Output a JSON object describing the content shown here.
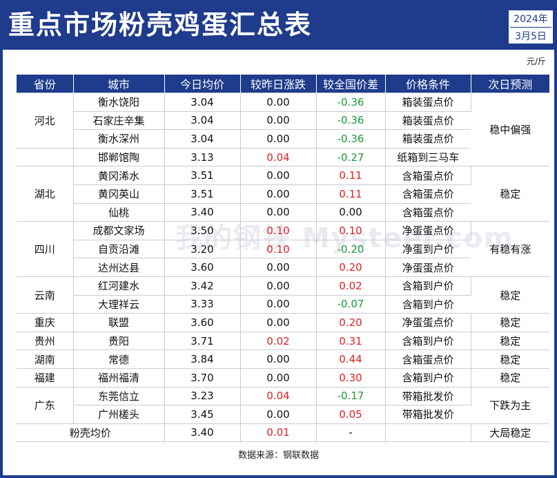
{
  "header": {
    "title": "重点市场粉壳鸡蛋汇总表",
    "year": "2024年",
    "date": "3月5日"
  },
  "unit": "元/斤",
  "watermark": "我的钢铁 Mysteel.com",
  "table": {
    "columns": [
      "省份",
      "城市",
      "今日均价",
      "较昨日涨跌",
      "较全国价差",
      "价格条件",
      "次日预测"
    ],
    "rows": [
      {
        "province": "河北",
        "rowspan": 3,
        "city": "衡水饶阳",
        "price": "3.04",
        "change": "0.00",
        "diff": "-0.36",
        "cond": "箱装蛋点价",
        "forecast": "稳中偏强",
        "frowspan": 4
      },
      {
        "city": "石家庄辛集",
        "price": "3.04",
        "change": "0.00",
        "diff": "-0.36",
        "cond": "箱装蛋点价"
      },
      {
        "city": "衡水深州",
        "price": "3.04",
        "change": "0.00",
        "diff": "-0.36",
        "cond": "箱装蛋点价"
      },
      {
        "province": "",
        "rowspan": 1,
        "city": "邯郸馆陶",
        "price": "3.13",
        "change": "0.04",
        "diff": "-0.27",
        "cond": "纸箱到三马车"
      },
      {
        "province": "湖北",
        "rowspan": 3,
        "city": "黄冈浠水",
        "price": "3.51",
        "change": "0.00",
        "diff": "0.11",
        "cond": "含箱蛋点价",
        "forecast": "稳定",
        "frowspan": 3
      },
      {
        "city": "黄冈英山",
        "price": "3.51",
        "change": "0.00",
        "diff": "0.11",
        "cond": "含箱蛋点价"
      },
      {
        "city": "仙桃",
        "price": "3.40",
        "change": "0.00",
        "diff": "0.00",
        "cond": "含箱蛋点价"
      },
      {
        "province": "四川",
        "rowspan": 3,
        "city": "成都文家场",
        "price": "3.50",
        "change": "0.10",
        "diff": "0.10",
        "cond": "净蛋蛋点价",
        "forecast": "有稳有涨",
        "frowspan": 3
      },
      {
        "city": "自贡沿滩",
        "price": "3.20",
        "change": "0.10",
        "diff": "-0.20",
        "cond": "净蛋到户价"
      },
      {
        "city": "达州达县",
        "price": "3.60",
        "change": "0.00",
        "diff": "0.20",
        "cond": "净蛋蛋点价"
      },
      {
        "province": "云南",
        "rowspan": 2,
        "city": "红河建水",
        "price": "3.42",
        "change": "0.00",
        "diff": "0.02",
        "cond": "含箱到户价",
        "forecast": "稳定",
        "frowspan": 2
      },
      {
        "city": "大理祥云",
        "price": "3.33",
        "change": "0.00",
        "diff": "-0.07",
        "cond": "含箱到户价"
      },
      {
        "province": "重庆",
        "rowspan": 1,
        "city": "联盟",
        "price": "3.60",
        "change": "0.00",
        "diff": "0.20",
        "cond": "净蛋蛋点价",
        "forecast": "稳定",
        "frowspan": 1
      },
      {
        "province": "贵州",
        "rowspan": 1,
        "city": "贵阳",
        "price": "3.71",
        "change": "0.02",
        "diff": "0.31",
        "cond": "含箱到户价",
        "forecast": "稳定",
        "frowspan": 1
      },
      {
        "province": "湖南",
        "rowspan": 1,
        "city": "常德",
        "price": "3.84",
        "change": "0.00",
        "diff": "0.44",
        "cond": "含箱蛋点价",
        "forecast": "稳定",
        "frowspan": 1
      },
      {
        "province": "福建",
        "rowspan": 1,
        "city": "福州福清",
        "price": "3.70",
        "change": "0.00",
        "diff": "0.30",
        "cond": "含箱到户价",
        "forecast": "稳定",
        "frowspan": 1
      },
      {
        "province": "广东",
        "rowspan": 2,
        "city": "东莞信立",
        "price": "3.23",
        "change": "0.04",
        "diff": "-0.17",
        "cond": "带箱批发价",
        "forecast": "下跌为主",
        "frowspan": 2
      },
      {
        "city": "广州槎头",
        "price": "3.45",
        "change": "0.00",
        "diff": "0.05",
        "cond": "带箱批发价"
      }
    ],
    "summary": {
      "label": "粉壳均价",
      "price": "3.40",
      "change": "0.01",
      "diff": "-",
      "cond": "",
      "forecast": "大局稳定"
    }
  },
  "colors": {
    "header_bg": "#1e3b8c",
    "up": "#e02020",
    "down": "#1a9a3a"
  },
  "source": "数据来源：钢联数据"
}
